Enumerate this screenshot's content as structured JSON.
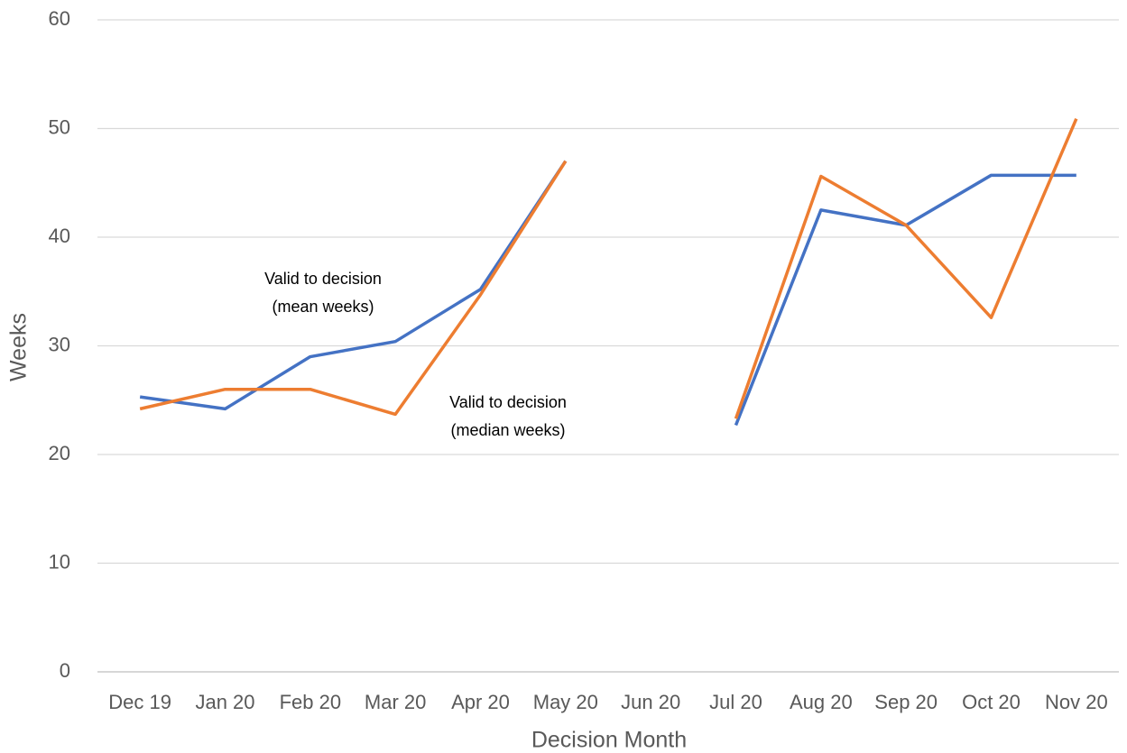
{
  "chart_data": {
    "type": "line",
    "x_label": "Decision Month",
    "y_label": "Weeks",
    "categories": [
      "Dec 19",
      "Jan 20",
      "Feb 20",
      "Mar 20",
      "Apr 20",
      "May 20",
      "Jun 20",
      "Jul 20",
      "Aug 20",
      "Sep 20",
      "Oct 20",
      "Nov 20"
    ],
    "series": [
      {
        "color": "#4472c4",
        "values": [
          25.3,
          24.2,
          29.0,
          30.4,
          35.2,
          47.0,
          null,
          22.7,
          42.5,
          41.1,
          45.7,
          45.7
        ]
      },
      {
        "color": "#ed7d31",
        "values": [
          24.2,
          26.0,
          26.0,
          23.7,
          34.7,
          47.0,
          null,
          23.3,
          45.6,
          41.1,
          32.6,
          50.9
        ]
      }
    ],
    "annotations": [
      {
        "lines": [
          "Valid to decision",
          "(mean weeks)"
        ]
      },
      {
        "lines": [
          "Valid to decision",
          "(median weeks)"
        ]
      }
    ],
    "ylim": [
      0,
      60
    ],
    "yticks": [
      0,
      10,
      20,
      30,
      40,
      50,
      60
    ],
    "grid": true
  }
}
